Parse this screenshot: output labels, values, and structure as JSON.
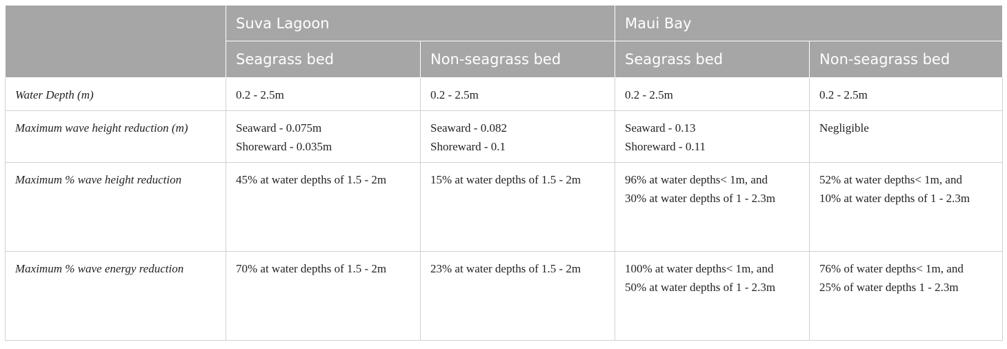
{
  "table": {
    "groups": [
      "Suva Lagoon",
      "Maui Bay"
    ],
    "subheaders": [
      "Seagrass bed",
      "Non-seagrass bed",
      "Seagrass bed",
      "Non-seagrass bed"
    ],
    "rows": [
      {
        "label": "Water Depth (m)",
        "cells": [
          [
            "0.2 - 2.5m"
          ],
          [
            "0.2 - 2.5m"
          ],
          [
            "0.2 - 2.5m"
          ],
          [
            "0.2 - 2.5m"
          ]
        ]
      },
      {
        "label": "Maximum wave height reduction (m)",
        "cells": [
          [
            "Seaward - 0.075m",
            "Shoreward - 0.035m"
          ],
          [
            "Seaward - 0.082",
            "Shoreward - 0.1"
          ],
          [
            "Seaward - 0.13",
            "Shoreward - 0.11"
          ],
          [
            "Negligible"
          ]
        ]
      },
      {
        "label": "Maximum % wave height reduction",
        "cells": [
          [
            "45% at water depths of 1.5 - 2m"
          ],
          [
            "15% at water depths of 1.5 - 2m"
          ],
          [
            "96% at water depths< 1m, and",
            "30% at water depths of 1 - 2.3m"
          ],
          [
            "52% at water depths< 1m, and",
            "10% at water depths of 1 - 2.3m"
          ]
        ]
      },
      {
        "label": "Maximum % wave energy reduction",
        "cells": [
          [
            "70% at water depths of 1.5 - 2m"
          ],
          [
            "23% at water depths of 1.5 - 2m"
          ],
          [
            "100% at water depths< 1m, and",
            "50% at water depths of 1 - 2.3m"
          ],
          [
            "76% of water depths< 1m, and",
            "25% of water depths 1 - 2.3m"
          ]
        ]
      }
    ]
  }
}
